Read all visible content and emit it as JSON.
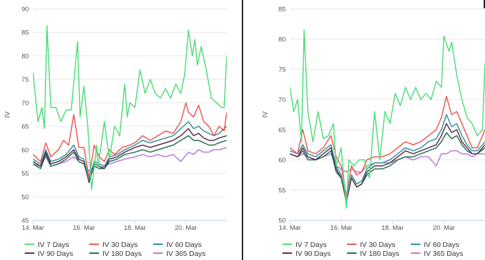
{
  "chart_data": [
    {
      "type": "line",
      "ylabel": "IV",
      "xlabel": "",
      "ylim": [
        45,
        90
      ],
      "yticks": [
        45,
        50,
        55,
        60,
        65,
        70,
        75,
        80,
        85,
        90
      ],
      "xlim": [
        14.0,
        21.6
      ],
      "xticks": [
        14,
        16,
        18,
        20
      ],
      "xtick_labels": [
        "14. Mar",
        "16. Mar",
        "18. Mar",
        "20. Mar"
      ],
      "grid": "horizontal",
      "legend_position": "bottom",
      "series": [
        {
          "name": "IV 7 Days",
          "color": "#4ddd78",
          "x": [
            14.0,
            14.2,
            14.35,
            14.45,
            14.55,
            14.7,
            14.9,
            15.1,
            15.3,
            15.5,
            15.75,
            15.85,
            16.0,
            16.15,
            16.3,
            16.5,
            16.55,
            16.8,
            17.0,
            17.2,
            17.4,
            17.6,
            17.7,
            17.8,
            18.0,
            18.2,
            18.4,
            18.6,
            18.8,
            19.0,
            19.2,
            19.4,
            19.6,
            19.8,
            19.95,
            20.1,
            20.25,
            20.35,
            20.45,
            20.6,
            20.8,
            21.0,
            21.2,
            21.4,
            21.5,
            21.6
          ],
          "values": [
            76.5,
            66.0,
            69.0,
            64.5,
            86.5,
            69.0,
            69.0,
            66.0,
            68.5,
            68.5,
            83.0,
            67.0,
            73.5,
            65.0,
            51.5,
            61.0,
            56.0,
            66.0,
            58.0,
            65.0,
            63.0,
            74.0,
            67.0,
            70.0,
            69.0,
            77.0,
            72.0,
            75.0,
            72.0,
            71.0,
            73.0,
            71.0,
            74.0,
            72.0,
            76.0,
            85.5,
            80.0,
            83.5,
            78.0,
            82.0,
            77.0,
            71.0,
            70.0,
            69.0,
            69.0,
            80.0
          ]
        },
        {
          "name": "IV 30 Days",
          "color": "#ee5550",
          "x": [
            14.0,
            14.3,
            14.5,
            14.7,
            15.0,
            15.2,
            15.4,
            15.6,
            15.8,
            16.0,
            16.2,
            16.4,
            16.6,
            16.8,
            17.0,
            17.2,
            17.5,
            17.8,
            18.0,
            18.3,
            18.6,
            18.9,
            19.2,
            19.5,
            19.8,
            20.0,
            20.1,
            20.3,
            20.5,
            20.7,
            20.9,
            21.1,
            21.3,
            21.5,
            21.6
          ],
          "values": [
            59.0,
            57.5,
            61.5,
            58.5,
            60.0,
            62.0,
            61.0,
            67.5,
            60.5,
            60.5,
            54.0,
            61.0,
            58.5,
            57.5,
            60.0,
            59.0,
            60.5,
            61.0,
            61.5,
            63.0,
            62.0,
            63.0,
            64.0,
            63.5,
            66.0,
            70.0,
            68.0,
            67.0,
            69.5,
            66.0,
            65.0,
            63.0,
            65.0,
            64.0,
            68.0
          ]
        },
        {
          "name": "IV 60 Days",
          "color": "#2c8f9c",
          "x": [
            14.0,
            14.3,
            14.5,
            14.7,
            15.0,
            15.3,
            15.6,
            15.8,
            16.0,
            16.2,
            16.4,
            16.6,
            16.8,
            17.0,
            17.3,
            17.6,
            18.0,
            18.3,
            18.6,
            18.9,
            19.2,
            19.5,
            19.8,
            20.1,
            20.3,
            20.5,
            20.7,
            20.9,
            21.1,
            21.3,
            21.6
          ],
          "values": [
            58.0,
            57.0,
            60.0,
            57.5,
            58.0,
            59.0,
            61.0,
            58.5,
            58.0,
            53.5,
            57.5,
            57.0,
            56.5,
            58.5,
            59.0,
            60.0,
            61.0,
            62.0,
            61.5,
            62.0,
            62.5,
            63.0,
            64.5,
            66.0,
            64.5,
            65.0,
            64.0,
            63.5,
            63.0,
            63.5,
            65.0
          ]
        },
        {
          "name": "IV 90 Days",
          "color": "#5a2a44",
          "x": [
            14.0,
            14.3,
            14.5,
            14.7,
            15.0,
            15.3,
            15.6,
            15.8,
            16.0,
            16.2,
            16.4,
            16.6,
            16.8,
            17.0,
            17.3,
            17.6,
            18.0,
            18.3,
            18.6,
            18.9,
            19.2,
            19.5,
            19.8,
            20.1,
            20.3,
            20.5,
            20.7,
            20.9,
            21.1,
            21.3,
            21.6
          ],
          "values": [
            57.5,
            56.5,
            59.5,
            57.0,
            57.5,
            58.5,
            60.0,
            58.0,
            57.5,
            53.0,
            57.0,
            56.5,
            56.0,
            58.0,
            58.5,
            59.5,
            60.5,
            61.0,
            60.5,
            61.0,
            61.5,
            62.0,
            63.0,
            64.5,
            63.0,
            63.5,
            62.5,
            62.0,
            62.0,
            62.5,
            63.0
          ]
        },
        {
          "name": "IV 180 Days",
          "color": "#1e6e4e",
          "x": [
            14.0,
            14.3,
            14.5,
            14.7,
            15.0,
            15.3,
            15.6,
            15.8,
            16.0,
            16.2,
            16.4,
            16.6,
            16.8,
            17.0,
            17.3,
            17.6,
            18.0,
            18.3,
            18.6,
            18.9,
            19.2,
            19.5,
            19.8,
            20.1,
            20.3,
            20.5,
            20.7,
            20.9,
            21.1,
            21.3,
            21.6
          ],
          "values": [
            57.0,
            56.0,
            59.0,
            56.5,
            57.0,
            58.0,
            59.5,
            57.5,
            57.0,
            53.5,
            56.5,
            56.0,
            56.0,
            57.5,
            58.0,
            59.0,
            59.5,
            60.0,
            59.5,
            60.0,
            60.5,
            61.0,
            62.0,
            63.0,
            62.0,
            62.0,
            61.5,
            61.0,
            61.0,
            61.5,
            62.0
          ]
        },
        {
          "name": "IV 365 Days",
          "color": "#b778e0",
          "x": [
            14.0,
            14.3,
            14.5,
            14.7,
            15.0,
            15.3,
            15.6,
            15.8,
            16.0,
            16.2,
            16.4,
            16.6,
            16.8,
            17.0,
            17.3,
            17.6,
            18.0,
            18.3,
            18.6,
            18.9,
            19.2,
            19.5,
            19.8,
            20.1,
            20.3,
            20.5,
            20.7,
            20.9,
            21.1,
            21.3,
            21.6
          ],
          "values": [
            57.0,
            56.5,
            58.5,
            56.5,
            57.0,
            57.5,
            58.5,
            57.5,
            57.0,
            55.5,
            56.5,
            56.0,
            56.5,
            57.0,
            57.5,
            58.0,
            58.5,
            59.0,
            58.5,
            59.0,
            58.5,
            59.0,
            57.5,
            59.5,
            59.0,
            60.0,
            59.5,
            59.5,
            60.0,
            60.0,
            60.5
          ]
        }
      ]
    },
    {
      "type": "line",
      "ylabel": "IV",
      "xlabel": "",
      "ylim": [
        50,
        85
      ],
      "yticks": [
        50,
        55,
        60,
        65,
        70,
        75,
        80,
        85
      ],
      "xlim": [
        14.0,
        21.6
      ],
      "xticks": [
        14,
        16,
        18,
        20
      ],
      "xtick_labels": [
        "14. Mar",
        "16. Mar",
        "18. Mar",
        "20. Mar"
      ],
      "grid": "horizontal",
      "legend_position": "bottom",
      "series": [
        {
          "name": "IV 7 Days",
          "color": "#4ddd78",
          "x": [
            14.0,
            14.15,
            14.3,
            14.45,
            14.55,
            14.7,
            14.9,
            15.1,
            15.3,
            15.5,
            15.7,
            15.8,
            16.0,
            16.2,
            16.3,
            16.5,
            16.7,
            16.9,
            17.1,
            17.3,
            17.5,
            17.7,
            17.9,
            18.1,
            18.3,
            18.5,
            18.7,
            18.9,
            19.1,
            19.3,
            19.5,
            19.7,
            19.9,
            20.0,
            20.2,
            20.3,
            20.5,
            20.7,
            20.9,
            21.1,
            21.3,
            21.5,
            21.6
          ],
          "values": [
            72.0,
            68.0,
            70.0,
            63.0,
            81.5,
            68.0,
            63.0,
            68.0,
            63.5,
            64.0,
            66.0,
            59.0,
            62.0,
            52.0,
            60.0,
            59.0,
            60.0,
            60.0,
            57.0,
            68.0,
            60.0,
            68.0,
            66.0,
            71.0,
            69.0,
            72.0,
            70.0,
            72.0,
            70.0,
            71.0,
            70.0,
            73.0,
            72.0,
            80.5,
            78.0,
            79.5,
            74.0,
            70.0,
            67.0,
            66.0,
            64.0,
            65.0,
            76.0
          ]
        },
        {
          "name": "IV 30 Days",
          "color": "#ee5550",
          "x": [
            14.0,
            14.3,
            14.5,
            14.7,
            15.0,
            15.3,
            15.6,
            15.8,
            16.0,
            16.2,
            16.4,
            16.6,
            16.8,
            17.0,
            17.3,
            17.6,
            17.9,
            18.2,
            18.5,
            18.8,
            19.1,
            19.4,
            19.7,
            19.9,
            20.1,
            20.3,
            20.5,
            20.7,
            20.9,
            21.1,
            21.3,
            21.6
          ],
          "values": [
            62.0,
            61.0,
            65.0,
            61.5,
            61.0,
            62.0,
            64.0,
            60.5,
            59.0,
            54.0,
            59.0,
            57.5,
            58.0,
            60.0,
            60.5,
            60.5,
            61.0,
            62.0,
            63.0,
            62.5,
            63.0,
            64.0,
            65.0,
            67.0,
            70.5,
            67.5,
            68.0,
            66.0,
            64.0,
            62.0,
            62.0,
            65.0
          ]
        },
        {
          "name": "IV 60 Days",
          "color": "#2c8f9c",
          "x": [
            14.0,
            14.3,
            14.5,
            14.7,
            15.0,
            15.3,
            15.6,
            15.8,
            16.0,
            16.2,
            16.4,
            16.6,
            16.8,
            17.0,
            17.3,
            17.6,
            17.9,
            18.2,
            18.5,
            18.8,
            19.1,
            19.4,
            19.7,
            19.9,
            20.1,
            20.3,
            20.5,
            20.7,
            20.9,
            21.1,
            21.3,
            21.6
          ],
          "values": [
            61.5,
            61.0,
            62.5,
            61.0,
            60.5,
            61.5,
            62.5,
            59.0,
            57.5,
            53.5,
            57.5,
            56.0,
            56.5,
            58.5,
            59.5,
            59.5,
            60.0,
            61.0,
            62.0,
            61.5,
            62.0,
            63.0,
            63.5,
            65.0,
            67.5,
            65.5,
            66.0,
            64.0,
            62.5,
            61.5,
            61.5,
            63.0
          ]
        },
        {
          "name": "IV 90 Days",
          "color": "#5a2a44",
          "x": [
            14.0,
            14.3,
            14.5,
            14.7,
            15.0,
            15.3,
            15.6,
            15.8,
            16.0,
            16.2,
            16.4,
            16.6,
            16.8,
            17.0,
            17.3,
            17.6,
            17.9,
            18.2,
            18.5,
            18.8,
            19.1,
            19.4,
            19.7,
            19.9,
            20.1,
            20.3,
            20.5,
            20.7,
            20.9,
            21.1,
            21.3,
            21.6
          ],
          "values": [
            61.0,
            60.5,
            62.0,
            60.5,
            60.0,
            61.0,
            62.0,
            58.5,
            57.0,
            53.0,
            57.0,
            55.5,
            56.0,
            58.0,
            59.0,
            59.0,
            59.5,
            60.5,
            61.5,
            61.0,
            61.5,
            62.0,
            62.5,
            64.0,
            66.0,
            64.5,
            65.0,
            63.0,
            62.0,
            61.0,
            61.0,
            62.5
          ]
        },
        {
          "name": "IV 180 Days",
          "color": "#1e6e4e",
          "x": [
            14.0,
            14.3,
            14.5,
            14.7,
            15.0,
            15.3,
            15.6,
            15.8,
            16.0,
            16.2,
            16.4,
            16.6,
            16.8,
            17.0,
            17.3,
            17.6,
            17.9,
            18.2,
            18.5,
            18.8,
            19.1,
            19.4,
            19.7,
            19.9,
            20.1,
            20.3,
            20.5,
            20.7,
            20.9,
            21.1,
            21.3,
            21.6
          ],
          "values": [
            61.0,
            60.5,
            61.5,
            60.0,
            60.0,
            60.5,
            61.5,
            58.0,
            57.0,
            53.5,
            57.0,
            55.5,
            56.0,
            57.5,
            58.5,
            58.5,
            59.0,
            60.0,
            60.5,
            60.5,
            61.0,
            61.5,
            62.0,
            63.0,
            64.5,
            63.5,
            64.0,
            62.5,
            61.5,
            61.0,
            61.0,
            62.0
          ]
        },
        {
          "name": "IV 365 Days",
          "color": "#b778e0",
          "x": [
            14.0,
            14.3,
            14.5,
            14.7,
            15.0,
            15.3,
            15.6,
            15.8,
            16.0,
            16.2,
            16.4,
            16.6,
            16.8,
            17.0,
            17.3,
            17.6,
            17.9,
            18.2,
            18.5,
            18.8,
            19.1,
            19.4,
            19.7,
            19.9,
            20.1,
            20.3,
            20.5,
            20.7,
            20.9,
            21.1,
            21.3,
            21.6
          ],
          "values": [
            61.0,
            60.5,
            61.0,
            60.5,
            60.0,
            60.5,
            61.0,
            59.0,
            58.5,
            58.0,
            58.5,
            58.0,
            58.0,
            59.0,
            59.5,
            59.5,
            59.5,
            60.0,
            60.5,
            60.0,
            60.5,
            60.5,
            59.0,
            61.0,
            61.0,
            61.5,
            61.5,
            61.0,
            61.0,
            60.5,
            61.0,
            61.0
          ]
        }
      ]
    }
  ]
}
